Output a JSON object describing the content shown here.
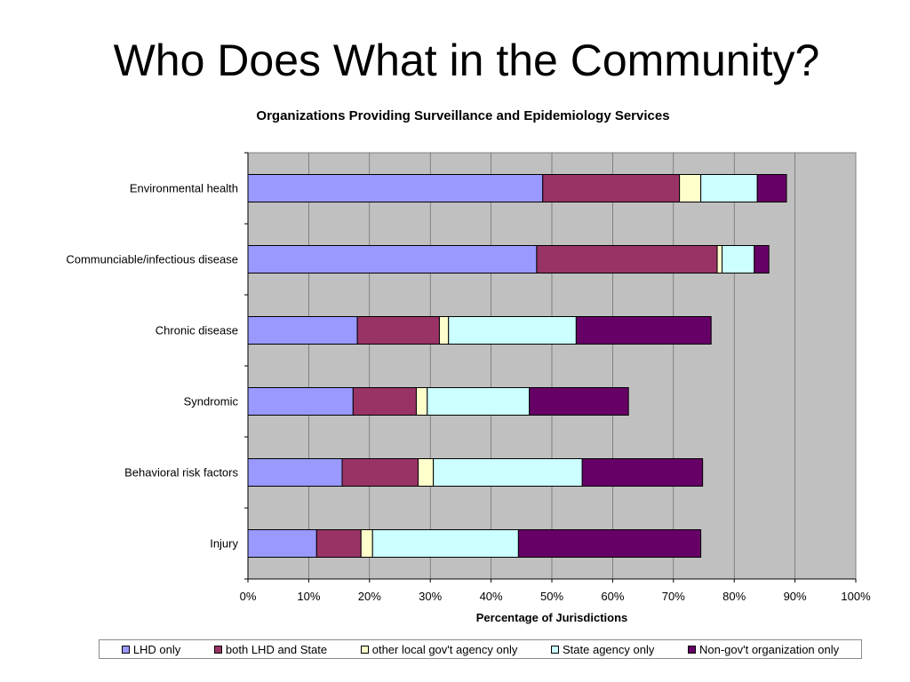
{
  "page": {
    "title": "Who Does What in the Community?"
  },
  "chart_data": {
    "type": "bar",
    "orientation": "horizontal",
    "stacked": true,
    "title": "Organizations Providing Surveillance and Epidemiology Services",
    "xlabel": "Percentage of Jurisdictions",
    "ylabel": "",
    "xlim": [
      0,
      100
    ],
    "x_ticks": [
      "0%",
      "10%",
      "20%",
      "30%",
      "40%",
      "50%",
      "60%",
      "70%",
      "80%",
      "90%",
      "100%"
    ],
    "grid": true,
    "legend_position": "bottom",
    "plot_background": "#c0c0c0",
    "categories": [
      "Environmental health",
      "Communciable/infectious disease",
      "Chronic disease",
      "Syndromic",
      "Behavioral risk factors",
      "Injury"
    ],
    "series": [
      {
        "name": "LHD only",
        "color": "#9999ff",
        "values": [
          48.5,
          47.5,
          18,
          17.3,
          15.5,
          11.3
        ]
      },
      {
        "name": "both LHD and State",
        "color": "#993366",
        "values": [
          22.5,
          29.7,
          13.5,
          10.4,
          12.5,
          7.3
        ]
      },
      {
        "name": "other local gov't agency only",
        "color": "#ffffcc",
        "values": [
          3.5,
          0.8,
          1.5,
          1.8,
          2.5,
          1.9
        ]
      },
      {
        "name": "State agency only",
        "color": "#ccffff",
        "values": [
          9.3,
          5.3,
          21,
          16.8,
          24.5,
          24
        ]
      },
      {
        "name": "Non-gov't organization only",
        "color": "#660066",
        "values": [
          4.8,
          2.4,
          22.2,
          16.3,
          19.8,
          30
        ]
      }
    ]
  }
}
